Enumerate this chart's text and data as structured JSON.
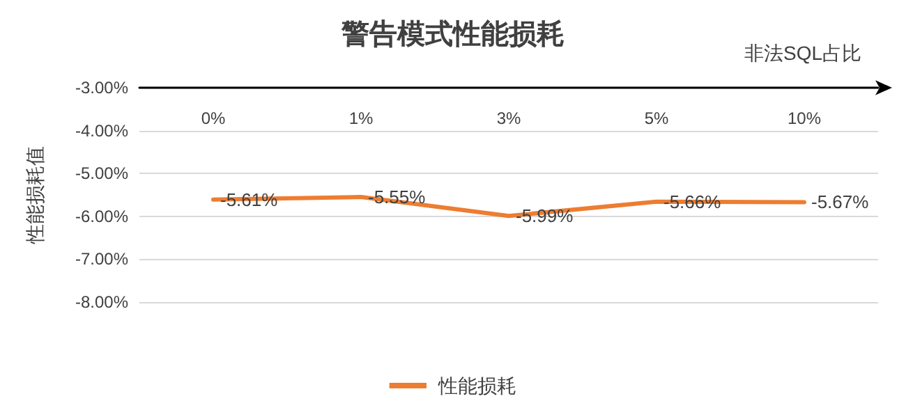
{
  "chart_data": {
    "type": "line",
    "title": "警告模式性能损耗",
    "xlabel": "非法SQL占比",
    "ylabel": "性能损耗值",
    "categories": [
      "0%",
      "1%",
      "3%",
      "5%",
      "10%"
    ],
    "series": [
      {
        "name": "性能损耗",
        "color": "#ed7d31",
        "values": [
          -5.61,
          -5.55,
          -5.99,
          -5.66,
          -5.67
        ],
        "value_labels": [
          "-5.61%",
          "-5.55%",
          "-5.99%",
          "-5.66%",
          "-5.67%"
        ]
      }
    ],
    "ylim": [
      -8,
      -3
    ],
    "yticks": [
      {
        "value": -8,
        "label": "-8.00%"
      },
      {
        "value": -7,
        "label": "-7.00%"
      },
      {
        "value": -6,
        "label": "-6.00%"
      },
      {
        "value": -5,
        "label": "-5.00%"
      },
      {
        "value": -4,
        "label": "-4.00%"
      },
      {
        "value": -3,
        "label": "-3.00%"
      }
    ],
    "grid": "y",
    "legend": "bottom",
    "marker": "none",
    "line_style": "solid"
  }
}
